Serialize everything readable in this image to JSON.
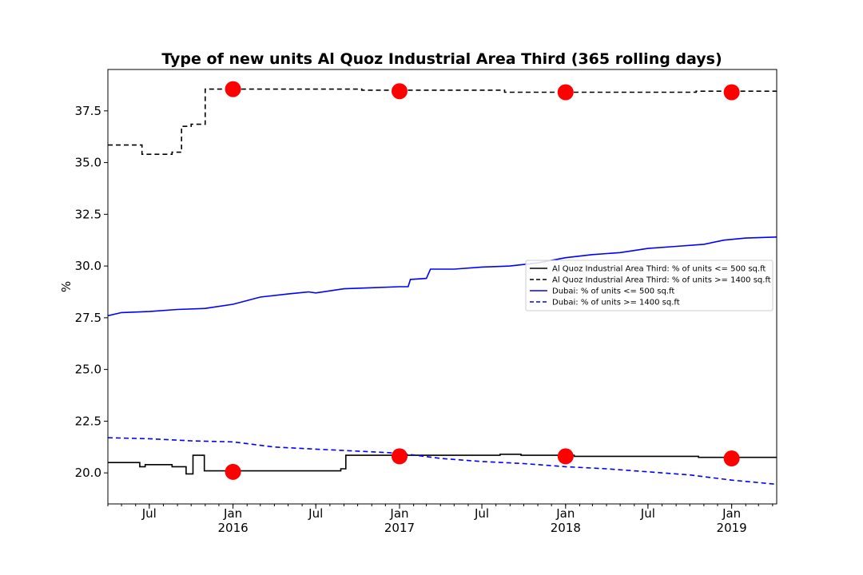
{
  "chart_data": {
    "type": "line",
    "title": "Type of new units Al Quoz Industrial Area Third (365 rolling days)",
    "xlabel": "",
    "ylabel": "%",
    "ylim": [
      18.5,
      39.5
    ],
    "xlim": [
      "2015-04-01",
      "2019-04-10"
    ],
    "yticks": [
      "20.0",
      "22.5",
      "25.0",
      "27.5",
      "30.0",
      "32.5",
      "35.0",
      "37.5"
    ],
    "xticks": [
      {
        "date": "2015-07-01",
        "label": "Jul",
        "sub": ""
      },
      {
        "date": "2016-01-01",
        "label": "Jan",
        "sub": "2016"
      },
      {
        "date": "2016-07-01",
        "label": "Jul",
        "sub": ""
      },
      {
        "date": "2017-01-01",
        "label": "Jan",
        "sub": "2017"
      },
      {
        "date": "2017-07-01",
        "label": "Jul",
        "sub": ""
      },
      {
        "date": "2018-01-01",
        "label": "Jan",
        "sub": "2018"
      },
      {
        "date": "2018-07-01",
        "label": "Jul",
        "sub": ""
      },
      {
        "date": "2019-01-01",
        "label": "Jan",
        "sub": "2019"
      }
    ],
    "legend_position": "right, middle",
    "series": [
      {
        "name": "Al Quoz Industrial Area Third: % of units <= 500 sq.ft",
        "color": "#000000",
        "dash": "solid",
        "step": true,
        "points": [
          [
            "2015-04-01",
            20.5
          ],
          [
            "2015-06-10",
            20.3
          ],
          [
            "2015-06-22",
            20.4
          ],
          [
            "2015-08-20",
            20.3
          ],
          [
            "2015-09-20",
            19.95
          ],
          [
            "2015-10-05",
            20.85
          ],
          [
            "2015-10-30",
            20.1
          ],
          [
            "2016-08-25",
            20.2
          ],
          [
            "2016-09-05",
            20.85
          ],
          [
            "2017-03-20",
            20.85
          ],
          [
            "2017-08-10",
            20.9
          ],
          [
            "2017-09-25",
            20.85
          ],
          [
            "2018-01-20",
            20.8
          ],
          [
            "2018-10-20",
            20.75
          ],
          [
            "2019-04-10",
            20.75
          ]
        ]
      },
      {
        "name": "Al Quoz Industrial Area Third: % of units >= 1400 sq.ft",
        "color": "#000000",
        "dash": "dashed",
        "step": true,
        "points": [
          [
            "2015-04-01",
            35.85
          ],
          [
            "2015-06-15",
            35.4
          ],
          [
            "2015-08-20",
            35.5
          ],
          [
            "2015-09-10",
            36.75
          ],
          [
            "2015-10-01",
            36.85
          ],
          [
            "2015-11-01",
            38.55
          ],
          [
            "2016-10-10",
            38.5
          ],
          [
            "2017-08-20",
            38.4
          ],
          [
            "2018-10-15",
            38.45
          ],
          [
            "2019-04-10",
            38.45
          ]
        ]
      },
      {
        "name": "Dubai: % of units <= 500 sq.ft",
        "color": "#0000ff",
        "dash": "solid",
        "step": false,
        "points": [
          [
            "2015-04-01",
            27.6
          ],
          [
            "2015-05-01",
            27.75
          ],
          [
            "2015-07-01",
            27.8
          ],
          [
            "2015-09-01",
            27.9
          ],
          [
            "2015-11-01",
            27.95
          ],
          [
            "2016-01-01",
            28.15
          ],
          [
            "2016-03-01",
            28.5
          ],
          [
            "2016-05-01",
            28.65
          ],
          [
            "2016-06-15",
            28.75
          ],
          [
            "2016-07-01",
            28.7
          ],
          [
            "2016-09-01",
            28.9
          ],
          [
            "2016-11-01",
            28.95
          ],
          [
            "2017-01-01",
            29.0
          ],
          [
            "2017-01-20",
            29.0
          ],
          [
            "2017-01-25",
            29.35
          ],
          [
            "2017-03-01",
            29.4
          ],
          [
            "2017-03-10",
            29.85
          ],
          [
            "2017-05-01",
            29.85
          ],
          [
            "2017-07-01",
            29.95
          ],
          [
            "2017-09-01",
            30.0
          ],
          [
            "2017-11-01",
            30.15
          ],
          [
            "2018-01-01",
            30.4
          ],
          [
            "2018-03-01",
            30.55
          ],
          [
            "2018-05-01",
            30.65
          ],
          [
            "2018-07-01",
            30.85
          ],
          [
            "2018-09-01",
            30.95
          ],
          [
            "2018-11-01",
            31.05
          ],
          [
            "2018-12-15",
            31.25
          ],
          [
            "2019-02-01",
            31.35
          ],
          [
            "2019-04-10",
            31.4
          ]
        ]
      },
      {
        "name": "Dubai: % of units >= 1400 sq.ft",
        "color": "#0000ff",
        "dash": "dashed",
        "step": false,
        "points": [
          [
            "2015-04-01",
            21.7
          ],
          [
            "2015-07-01",
            21.65
          ],
          [
            "2015-10-01",
            21.55
          ],
          [
            "2016-01-01",
            21.5
          ],
          [
            "2016-04-01",
            21.25
          ],
          [
            "2016-07-01",
            21.15
          ],
          [
            "2016-10-01",
            21.05
          ],
          [
            "2017-01-01",
            20.95
          ],
          [
            "2017-04-01",
            20.7
          ],
          [
            "2017-07-01",
            20.55
          ],
          [
            "2017-10-01",
            20.45
          ],
          [
            "2018-01-01",
            20.3
          ],
          [
            "2018-04-01",
            20.2
          ],
          [
            "2018-07-01",
            20.05
          ],
          [
            "2018-10-01",
            19.9
          ],
          [
            "2019-01-01",
            19.65
          ],
          [
            "2019-04-10",
            19.45
          ]
        ]
      }
    ],
    "markers": {
      "color": "#ff0000",
      "points": [
        [
          "2016-01-01",
          38.55
        ],
        [
          "2017-01-01",
          38.45
        ],
        [
          "2018-01-01",
          38.4
        ],
        [
          "2019-01-01",
          38.4
        ],
        [
          "2016-01-01",
          20.05
        ],
        [
          "2017-01-01",
          20.8
        ],
        [
          "2018-01-01",
          20.8
        ],
        [
          "2019-01-01",
          20.7
        ]
      ]
    }
  }
}
